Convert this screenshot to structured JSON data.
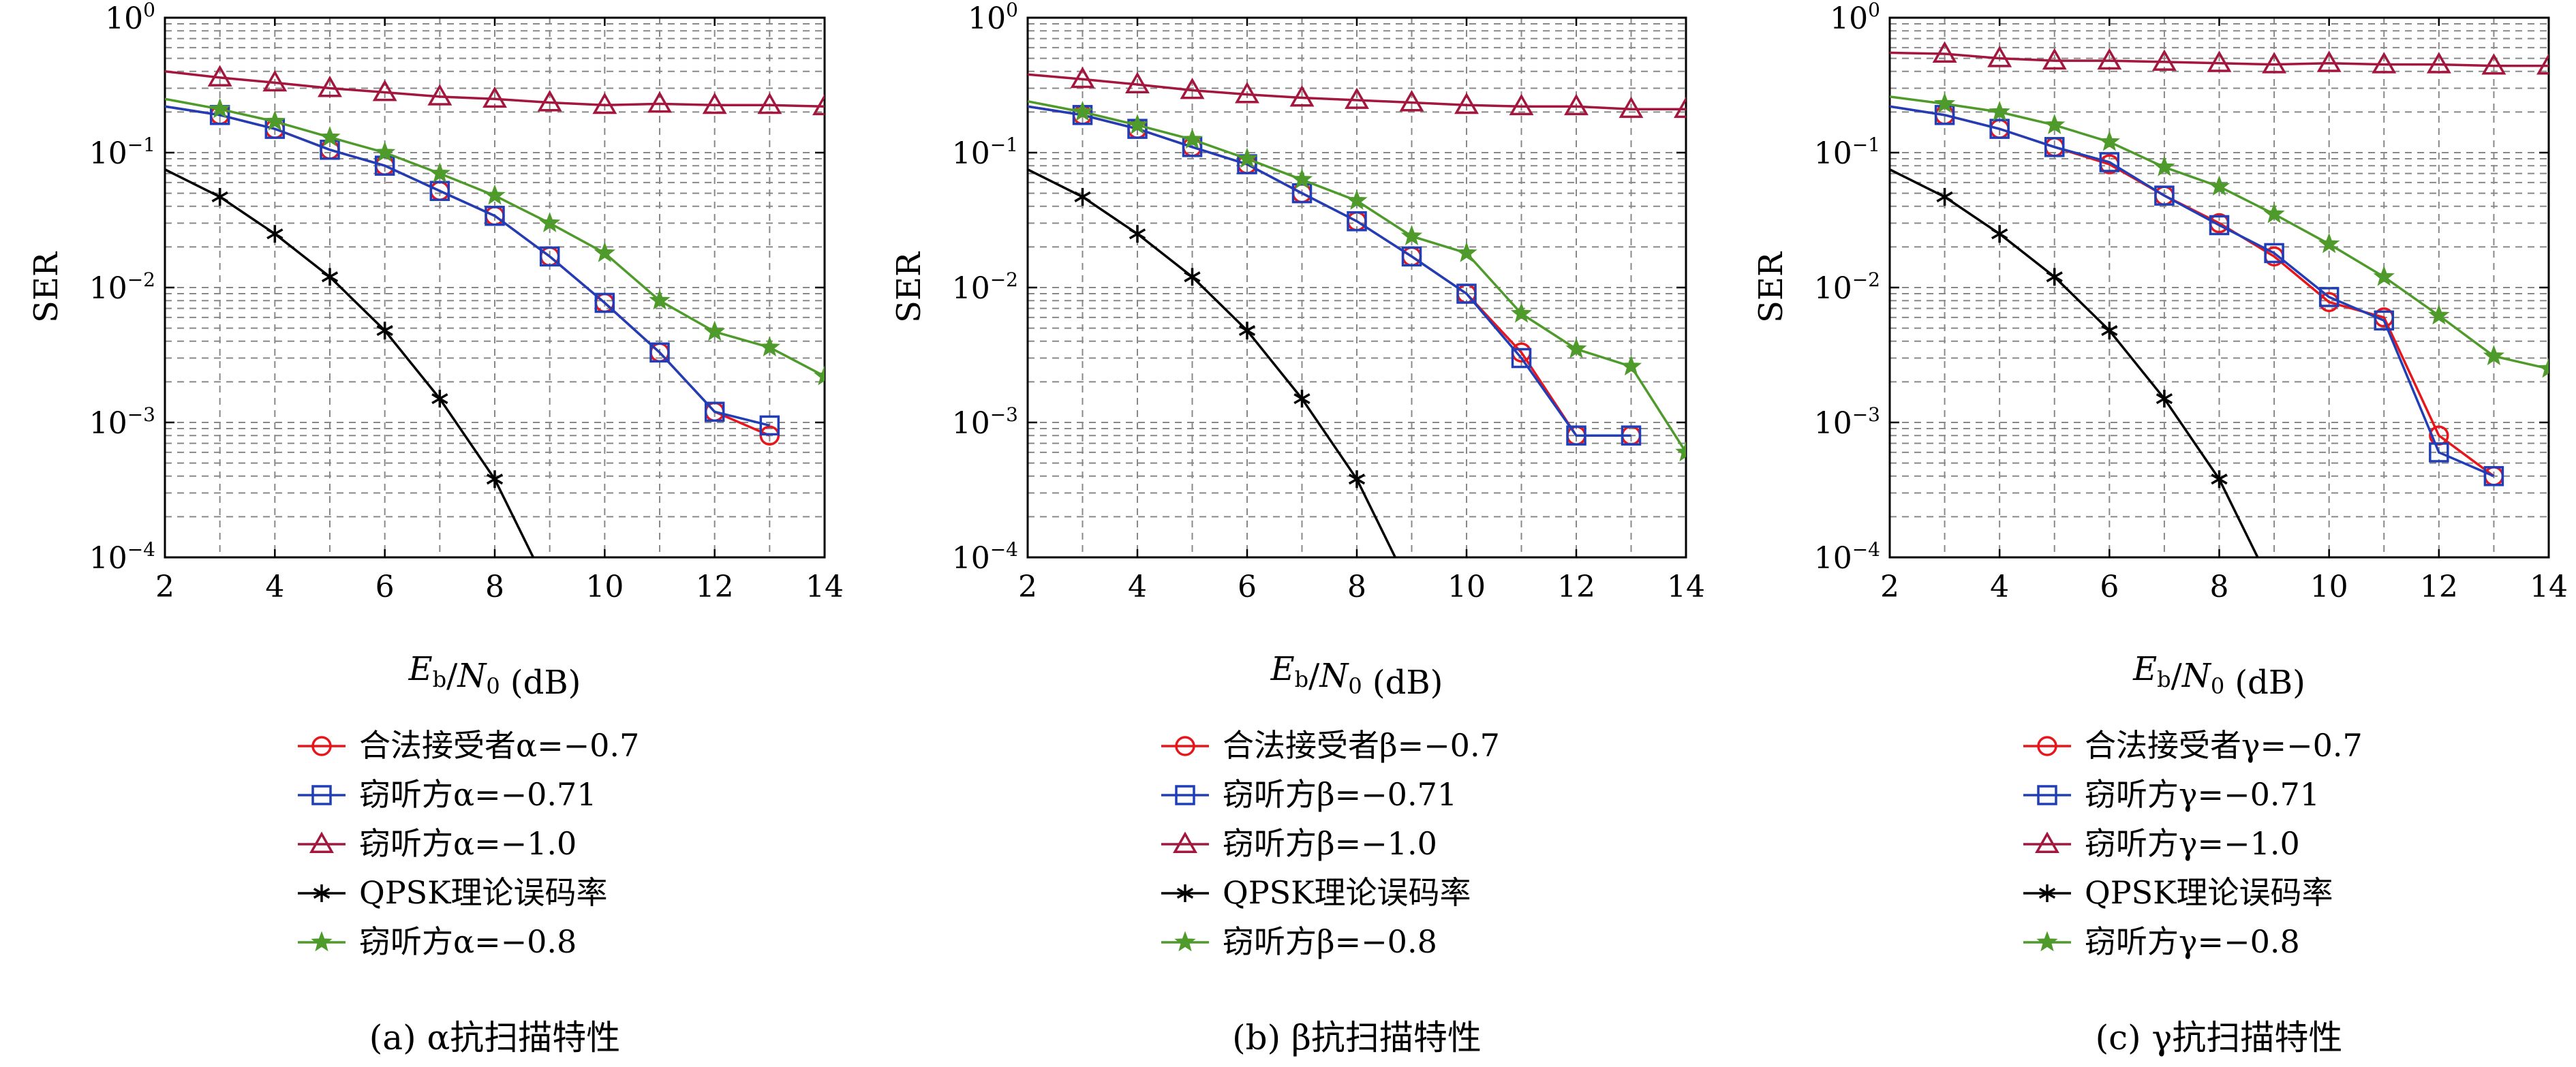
{
  "chart_data": [
    {
      "type": "line",
      "caption": "(a) α抗扫描特性",
      "xlabel": "E_b/N_0 (dB)",
      "ylabel": "SER",
      "xlim": [
        2,
        14
      ],
      "ylim": [
        0.0001,
        1
      ],
      "yscale": "log",
      "grid": true,
      "x_ticks": [
        2,
        4,
        6,
        8,
        10,
        12,
        14
      ],
      "y_ticks": [
        "10^-4",
        "10^-3",
        "10^-2",
        "10^-1",
        "10^0"
      ],
      "legend_position": "below",
      "series": [
        {
          "name": "合法接受者α=−0.7",
          "color": "#e8151b",
          "marker": "circle",
          "x": [
            2,
            3,
            4,
            5,
            6,
            7,
            8,
            9,
            10,
            11,
            12,
            13
          ],
          "y": [
            0.22,
            0.19,
            0.15,
            0.105,
            0.08,
            0.052,
            0.034,
            0.017,
            0.0077,
            0.0033,
            0.0012,
            0.0008
          ]
        },
        {
          "name": "窃听方α=−0.71",
          "color": "#1f3eb8",
          "marker": "square",
          "x": [
            2,
            3,
            4,
            5,
            6,
            7,
            8,
            9,
            10,
            11,
            12,
            13
          ],
          "y": [
            0.22,
            0.19,
            0.15,
            0.105,
            0.08,
            0.052,
            0.034,
            0.017,
            0.0077,
            0.0033,
            0.0012,
            0.00095
          ]
        },
        {
          "name": "窃听方α=−1.0",
          "color": "#a3163d",
          "marker": "triangle",
          "x": [
            2,
            3,
            4,
            5,
            6,
            7,
            8,
            9,
            10,
            11,
            12,
            13,
            14
          ],
          "y": [
            0.4,
            0.36,
            0.33,
            0.3,
            0.28,
            0.26,
            0.25,
            0.235,
            0.225,
            0.23,
            0.225,
            0.225,
            0.22
          ]
        },
        {
          "name": "QPSK理论误码率",
          "color": "#000000",
          "marker": "asterisk",
          "x": [
            2,
            3,
            4,
            5,
            6,
            7,
            8,
            8.7
          ],
          "y": [
            0.075,
            0.047,
            0.025,
            0.012,
            0.0048,
            0.0015,
            0.00038,
            0.0001
          ]
        },
        {
          "name": "窃听方α=−0.8",
          "color": "#4e9a2a",
          "marker": "star",
          "x": [
            2,
            3,
            4,
            5,
            6,
            7,
            8,
            9,
            10,
            11,
            12,
            13,
            14
          ],
          "y": [
            0.25,
            0.21,
            0.17,
            0.13,
            0.1,
            0.07,
            0.048,
            0.03,
            0.018,
            0.008,
            0.0047,
            0.0036,
            0.0022
          ]
        }
      ]
    },
    {
      "type": "line",
      "caption": "(b) β抗扫描特性",
      "xlabel": "E_b/N_0 (dB)",
      "ylabel": "SER",
      "xlim": [
        2,
        14
      ],
      "ylim": [
        0.0001,
        1
      ],
      "yscale": "log",
      "grid": true,
      "x_ticks": [
        2,
        4,
        6,
        8,
        10,
        12,
        14
      ],
      "y_ticks": [
        "10^-4",
        "10^-3",
        "10^-2",
        "10^-1",
        "10^0"
      ],
      "legend_position": "below",
      "series": [
        {
          "name": "合法接受者β=−0.7",
          "color": "#e8151b",
          "marker": "circle",
          "x": [
            2,
            3,
            4,
            5,
            6,
            7,
            8,
            9,
            10,
            11,
            12,
            13
          ],
          "y": [
            0.22,
            0.19,
            0.15,
            0.11,
            0.082,
            0.05,
            0.031,
            0.017,
            0.009,
            0.0033,
            0.0008,
            0.0008
          ]
        },
        {
          "name": "窃听方β=−0.71",
          "color": "#1f3eb8",
          "marker": "square",
          "x": [
            2,
            3,
            4,
            5,
            6,
            7,
            8,
            9,
            10,
            11,
            12,
            13
          ],
          "y": [
            0.22,
            0.19,
            0.15,
            0.11,
            0.082,
            0.05,
            0.031,
            0.017,
            0.009,
            0.003,
            0.0008,
            0.0008
          ]
        },
        {
          "name": "窃听方β=−1.0",
          "color": "#a3163d",
          "marker": "triangle",
          "x": [
            2,
            3,
            4,
            5,
            6,
            7,
            8,
            9,
            10,
            11,
            12,
            13,
            14
          ],
          "y": [
            0.38,
            0.35,
            0.32,
            0.29,
            0.27,
            0.255,
            0.245,
            0.235,
            0.225,
            0.22,
            0.22,
            0.21,
            0.21
          ]
        },
        {
          "name": "QPSK理论误码率",
          "color": "#000000",
          "marker": "asterisk",
          "x": [
            2,
            3,
            4,
            5,
            6,
            7,
            8,
            8.7
          ],
          "y": [
            0.075,
            0.047,
            0.025,
            0.012,
            0.0048,
            0.0015,
            0.00038,
            0.0001
          ]
        },
        {
          "name": "窃听方β=−0.8",
          "color": "#4e9a2a",
          "marker": "star",
          "x": [
            2,
            3,
            4,
            5,
            6,
            7,
            8,
            9,
            10,
            11,
            12,
            13,
            14
          ],
          "y": [
            0.24,
            0.2,
            0.16,
            0.125,
            0.09,
            0.063,
            0.044,
            0.024,
            0.018,
            0.0064,
            0.0035,
            0.0026,
            0.0006
          ]
        }
      ]
    },
    {
      "type": "line",
      "caption": "(c) γ抗扫描特性",
      "xlabel": "E_b/N_0 (dB)",
      "ylabel": "SER",
      "xlim": [
        2,
        14
      ],
      "ylim": [
        0.0001,
        1
      ],
      "yscale": "log",
      "grid": true,
      "x_ticks": [
        2,
        4,
        6,
        8,
        10,
        12,
        14
      ],
      "y_ticks": [
        "10^-4",
        "10^-3",
        "10^-2",
        "10^-1",
        "10^0"
      ],
      "legend_position": "below",
      "series": [
        {
          "name": "合法接受者γ=−0.7",
          "color": "#e8151b",
          "marker": "circle",
          "x": [
            2,
            3,
            4,
            5,
            6,
            7,
            8,
            9,
            10,
            11,
            12,
            13
          ],
          "y": [
            0.22,
            0.19,
            0.15,
            0.11,
            0.082,
            0.048,
            0.03,
            0.017,
            0.0078,
            0.006,
            0.0008,
            0.0004
          ]
        },
        {
          "name": "窃听方γ=−0.71",
          "color": "#1f3eb8",
          "marker": "square",
          "x": [
            2,
            3,
            4,
            5,
            6,
            7,
            8,
            9,
            10,
            11,
            12,
            13
          ],
          "y": [
            0.22,
            0.19,
            0.15,
            0.11,
            0.085,
            0.048,
            0.029,
            0.018,
            0.0085,
            0.0057,
            0.0006,
            0.0004
          ]
        },
        {
          "name": "窃听方γ=−1.0",
          "color": "#a3163d",
          "marker": "triangle",
          "x": [
            2,
            3,
            4,
            5,
            6,
            7,
            8,
            9,
            10,
            11,
            12,
            13,
            14
          ],
          "y": [
            0.55,
            0.54,
            0.5,
            0.48,
            0.48,
            0.47,
            0.46,
            0.45,
            0.46,
            0.45,
            0.45,
            0.44,
            0.44
          ]
        },
        {
          "name": "QPSK理论误码率",
          "color": "#000000",
          "marker": "asterisk",
          "x": [
            2,
            3,
            4,
            5,
            6,
            7,
            8,
            8.7
          ],
          "y": [
            0.075,
            0.047,
            0.025,
            0.012,
            0.0048,
            0.0015,
            0.00038,
            0.0001
          ]
        },
        {
          "name": "窃听方γ=−0.8",
          "color": "#4e9a2a",
          "marker": "star",
          "x": [
            2,
            3,
            4,
            5,
            6,
            7,
            8,
            9,
            10,
            11,
            12,
            13,
            14
          ],
          "y": [
            0.26,
            0.23,
            0.2,
            0.16,
            0.12,
            0.078,
            0.056,
            0.035,
            0.021,
            0.012,
            0.0062,
            0.0031,
            0.0025
          ]
        }
      ]
    }
  ]
}
